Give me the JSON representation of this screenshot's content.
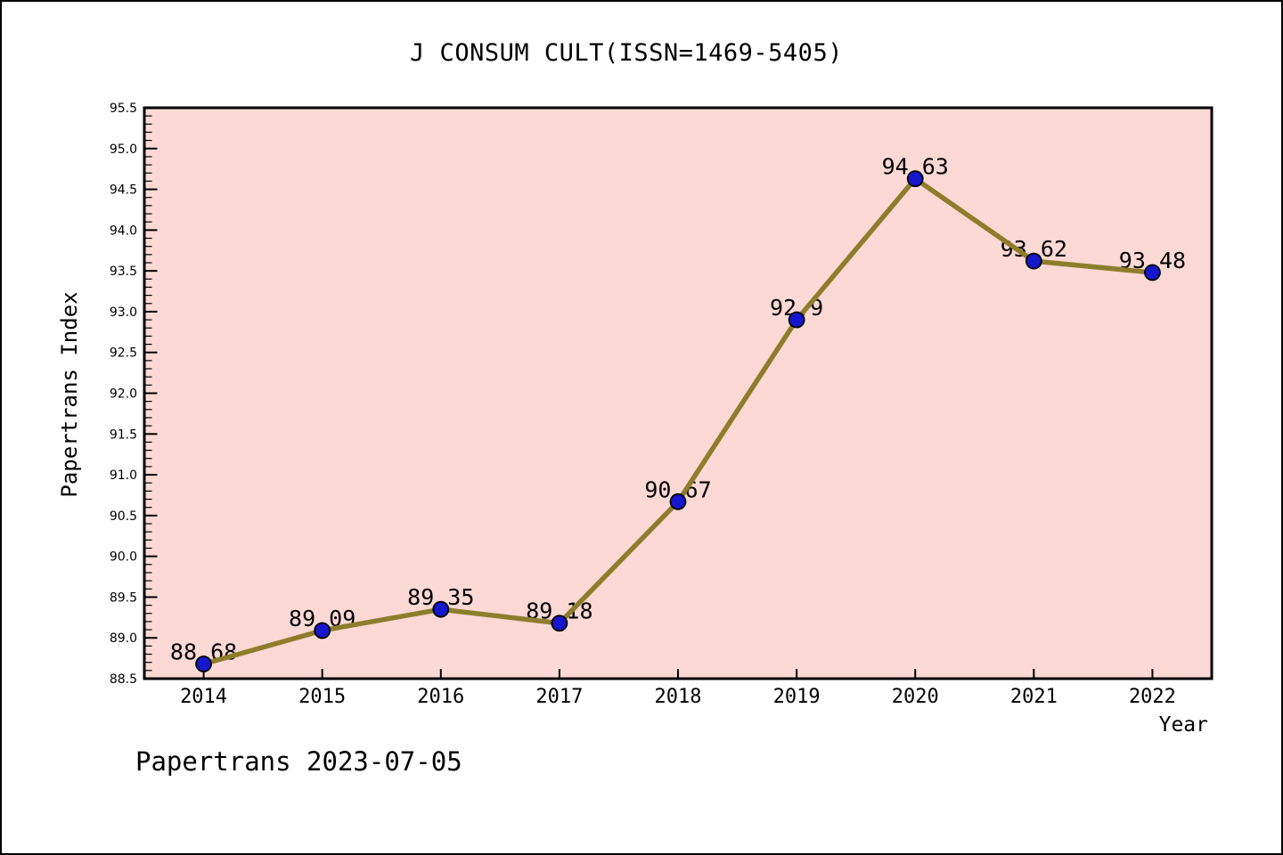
{
  "footer": "Papertrans 2023-07-05",
  "chart_data": {
    "type": "line",
    "title": "J CONSUM CULT(ISSN=1469-5405)",
    "xlabel": "Year",
    "ylabel": "Papertrans Index",
    "categories": [
      "2014",
      "2015",
      "2016",
      "2017",
      "2018",
      "2019",
      "2020",
      "2021",
      "2022"
    ],
    "values": [
      88.68,
      89.09,
      89.35,
      89.18,
      90.67,
      92.9,
      94.63,
      93.62,
      93.48
    ],
    "point_labels": [
      "88.68",
      "89.09",
      "89.35",
      "89.18",
      "90.67",
      "92.9",
      "94.63",
      "93.62",
      "93.48"
    ],
    "ylim": [
      88.5,
      95.5
    ],
    "ytick_step": 0.5,
    "y_minor_step": 0.1,
    "grid": false,
    "legend": null,
    "colors": {
      "plot_bg": "#fcd9d4",
      "line": "#8e7d2c",
      "marker": "#1616cd",
      "marker_edge": "#000000",
      "frame": "#000000",
      "text": "#000000"
    }
  }
}
